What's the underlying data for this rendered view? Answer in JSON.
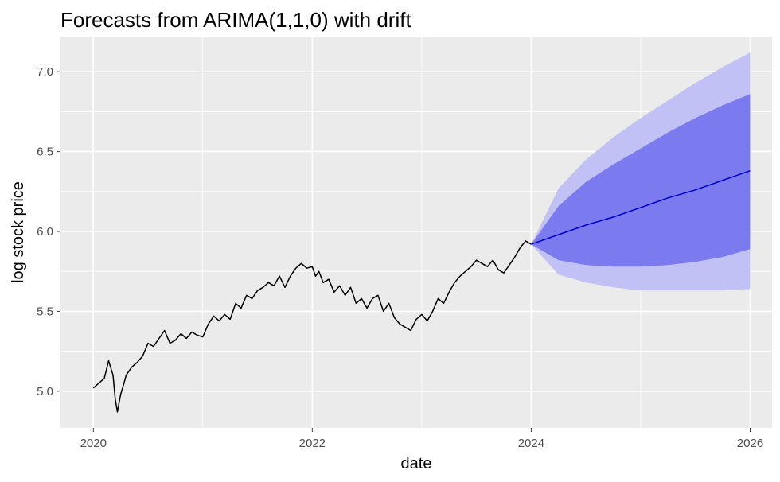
{
  "chart_data": {
    "type": "line",
    "title": "Forecasts from ARIMA(1,1,0) with drift",
    "xlabel": "date",
    "ylabel": "log stock price",
    "xlim": [
      2019.7,
      2026.2
    ],
    "ylim": [
      4.77,
      7.22
    ],
    "x_ticks": [
      2020,
      2022,
      2024,
      2026
    ],
    "x_tick_labels": [
      "2020",
      "2022",
      "2024",
      "2026"
    ],
    "y_ticks": [
      5.0,
      5.5,
      6.0,
      6.5,
      7.0
    ],
    "y_tick_labels": [
      "5.0",
      "5.5",
      "6.0",
      "6.5",
      "7.0"
    ],
    "grid": true,
    "colors": {
      "panel": "#ebebeb",
      "grid": "#ffffff",
      "history_line": "#000000",
      "forecast_line": "#0000cc",
      "band_80": "#7b7bef",
      "band_95": "#c1c1f5"
    },
    "history": {
      "x": [
        2020.0,
        2020.05,
        2020.1,
        2020.14,
        2020.18,
        2020.2,
        2020.22,
        2020.25,
        2020.28,
        2020.3,
        2020.35,
        2020.4,
        2020.45,
        2020.5,
        2020.55,
        2020.6,
        2020.65,
        2020.7,
        2020.75,
        2020.8,
        2020.85,
        2020.9,
        2020.95,
        2021.0,
        2021.05,
        2021.1,
        2021.15,
        2021.2,
        2021.25,
        2021.3,
        2021.35,
        2021.4,
        2021.45,
        2021.5,
        2021.55,
        2021.6,
        2021.65,
        2021.7,
        2021.75,
        2021.8,
        2021.85,
        2021.9,
        2021.95,
        2022.0,
        2022.03,
        2022.06,
        2022.1,
        2022.15,
        2022.2,
        2022.25,
        2022.3,
        2022.35,
        2022.4,
        2022.45,
        2022.5,
        2022.55,
        2022.6,
        2022.65,
        2022.7,
        2022.75,
        2022.8,
        2022.85,
        2022.9,
        2022.95,
        2023.0,
        2023.05,
        2023.1,
        2023.15,
        2023.2,
        2023.25,
        2023.3,
        2023.35,
        2023.4,
        2023.45,
        2023.5,
        2023.55,
        2023.6,
        2023.65,
        2023.7,
        2023.75,
        2023.8,
        2023.85,
        2023.9,
        2023.95,
        2024.0
      ],
      "y": [
        5.02,
        5.05,
        5.08,
        5.19,
        5.1,
        4.95,
        4.87,
        4.98,
        5.05,
        5.1,
        5.15,
        5.18,
        5.22,
        5.3,
        5.28,
        5.33,
        5.38,
        5.3,
        5.32,
        5.36,
        5.33,
        5.37,
        5.35,
        5.34,
        5.42,
        5.47,
        5.44,
        5.48,
        5.45,
        5.55,
        5.52,
        5.6,
        5.58,
        5.63,
        5.65,
        5.68,
        5.66,
        5.72,
        5.65,
        5.72,
        5.77,
        5.8,
        5.77,
        5.78,
        5.72,
        5.75,
        5.68,
        5.7,
        5.62,
        5.66,
        5.6,
        5.65,
        5.55,
        5.58,
        5.52,
        5.58,
        5.6,
        5.5,
        5.55,
        5.46,
        5.42,
        5.4,
        5.38,
        5.45,
        5.48,
        5.44,
        5.5,
        5.58,
        5.55,
        5.62,
        5.68,
        5.72,
        5.75,
        5.78,
        5.82,
        5.8,
        5.78,
        5.82,
        5.76,
        5.74,
        5.79,
        5.84,
        5.9,
        5.94,
        5.92
      ]
    },
    "forecast": {
      "x": [
        2024.0,
        2024.25,
        2024.5,
        2024.75,
        2025.0,
        2025.25,
        2025.5,
        2025.75,
        2026.0
      ],
      "mean": [
        5.92,
        5.98,
        6.04,
        6.09,
        6.15,
        6.21,
        6.26,
        6.32,
        6.38
      ],
      "lo80": [
        5.92,
        5.82,
        5.79,
        5.78,
        5.78,
        5.79,
        5.81,
        5.84,
        5.89
      ],
      "hi80": [
        5.92,
        6.16,
        6.31,
        6.42,
        6.52,
        6.62,
        6.71,
        6.79,
        6.86
      ],
      "lo95": [
        5.92,
        5.73,
        5.68,
        5.65,
        5.63,
        5.63,
        5.63,
        5.63,
        5.64
      ],
      "hi95": [
        5.92,
        6.27,
        6.45,
        6.59,
        6.71,
        6.82,
        6.93,
        7.03,
        7.12
      ]
    }
  }
}
